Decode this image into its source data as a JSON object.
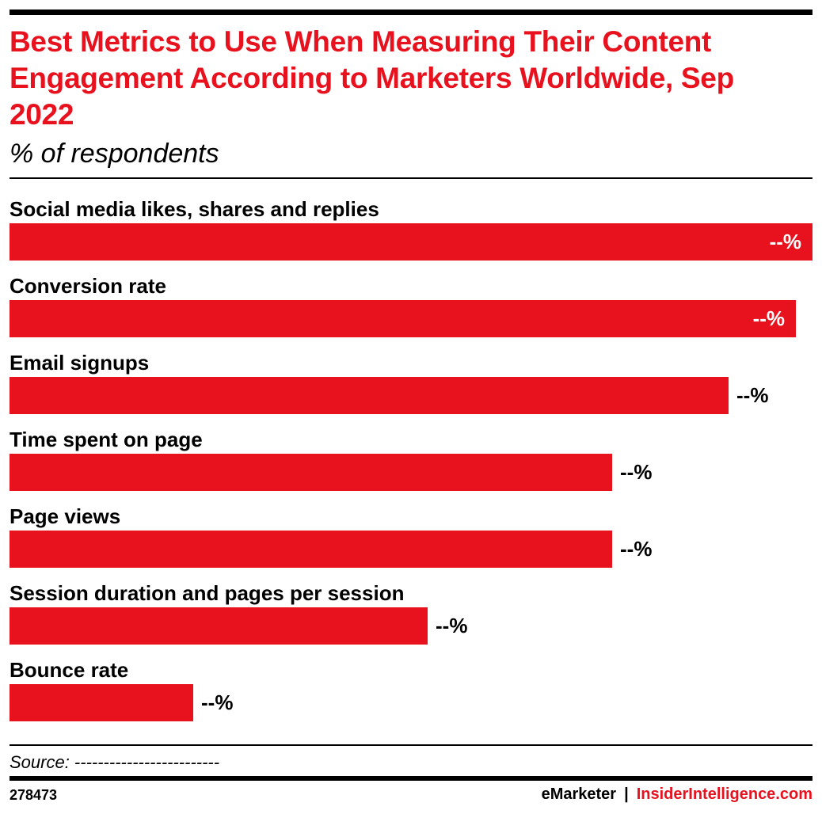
{
  "header": {
    "title": "Best Metrics to Use When Measuring Their Content Engagement According to Marketers Worldwide, Sep 2022",
    "subtitle": "% of respondents"
  },
  "colors": {
    "bar": "#e8111e",
    "title": "#e8111e",
    "rule": "#000000"
  },
  "chart_data": {
    "type": "bar",
    "orientation": "horizontal",
    "title": "Best Metrics to Use When Measuring Their Content Engagement According to Marketers Worldwide, Sep 2022",
    "subtitle": "% of respondents",
    "categories": [
      "Social media likes, shares and replies",
      "Conversion rate",
      "Email signups",
      "Time spent on page",
      "Page views",
      "Session duration and pages per session",
      "Bounce rate"
    ],
    "values": [
      100,
      97.9,
      89.5,
      75,
      75,
      52.1,
      22.9
    ],
    "value_labels": [
      "--%",
      "--%",
      "--%",
      "--%",
      "--%",
      "--%",
      "--%"
    ],
    "grid": false,
    "legend": "none"
  },
  "footer": {
    "source": "Source: -------------------------",
    "chart_id": "278473",
    "brand_emarketer": "eMarketer",
    "brand_separator": "|",
    "brand_insider": "InsiderIntelligence.com"
  }
}
